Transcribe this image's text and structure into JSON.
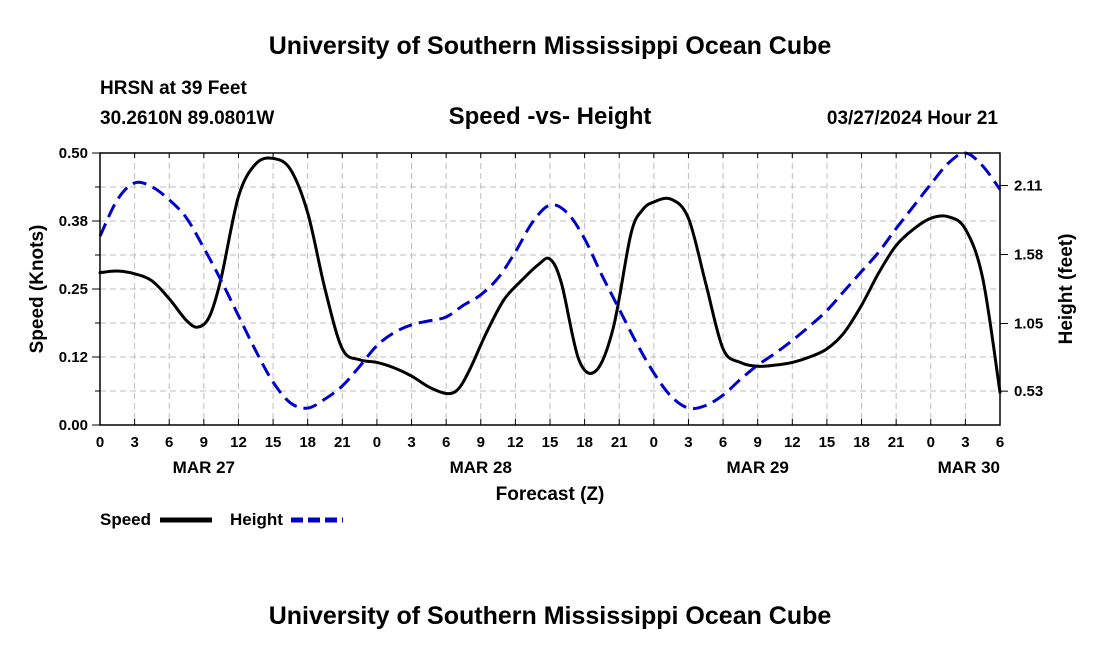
{
  "chart_data": {
    "type": "line",
    "title": "University of Southern Mississippi Ocean Cube",
    "footer_title": "University of Southern Mississippi Ocean Cube",
    "station": "HRSN at 39 Feet",
    "coords": "30.2610N  89.0801W",
    "subtitle": "Speed -vs- Height",
    "timestamp": "03/27/2024 Hour 21",
    "xlabel": "Forecast (Z)",
    "ylabel_left": "Speed (Knots)",
    "ylabel_right": "Height (feet)",
    "xlim": [
      0,
      78
    ],
    "ylim_left": [
      0,
      0.5
    ],
    "ylim_right": [
      0.27,
      2.36
    ],
    "grid": true,
    "x_tick_labels": [
      "0",
      "3",
      "6",
      "9",
      "12",
      "15",
      "18",
      "21",
      "0",
      "3",
      "6",
      "9",
      "12",
      "15",
      "18",
      "21",
      "0",
      "3",
      "6",
      "9",
      "12",
      "15",
      "18",
      "21",
      "0",
      "3",
      "6"
    ],
    "y_left_ticks": [
      {
        "value": 0.0,
        "label": "0.00"
      },
      {
        "value": 0.125,
        "label": "0.12"
      },
      {
        "value": 0.25,
        "label": "0.25"
      },
      {
        "value": 0.375,
        "label": "0.38"
      },
      {
        "value": 0.5,
        "label": "0.50"
      }
    ],
    "y_right_ticks": [
      {
        "value": 0.53,
        "label": "0.53"
      },
      {
        "value": 1.05,
        "label": "1.05"
      },
      {
        "value": 1.58,
        "label": "1.58"
      },
      {
        "value": 2.11,
        "label": "2.11"
      }
    ],
    "date_labels": [
      {
        "hour": 9,
        "label": "MAR 27"
      },
      {
        "hour": 33,
        "label": "MAR 28"
      },
      {
        "hour": 57,
        "label": "MAR 29"
      },
      {
        "hour": 78,
        "label": "MAR 30"
      }
    ],
    "legend": [
      {
        "name": "Speed",
        "color": "#000000",
        "dash": "solid"
      },
      {
        "name": "Height",
        "color": "#0000cc",
        "dash": "dashed"
      }
    ],
    "series": [
      {
        "name": "Speed",
        "axis": "left",
        "color": "#000000",
        "x": [
          0,
          1.5,
          3,
          4.5,
          6,
          7.5,
          8.5,
          9.5,
          10.5,
          12,
          13.5,
          15,
          16.5,
          18,
          19.5,
          21,
          22.5,
          24,
          25.5,
          27,
          28.5,
          30,
          31,
          32,
          33.5,
          35,
          36.5,
          38,
          39,
          40,
          41.5,
          43,
          44.5,
          46,
          47,
          48,
          49.5,
          51,
          52.5,
          54,
          55.5,
          57,
          58.5,
          60,
          61.5,
          63,
          64.5,
          66,
          67.5,
          69,
          70.5,
          72,
          73.5,
          75,
          76.5,
          78
        ],
        "values": [
          0.28,
          0.283,
          0.278,
          0.265,
          0.232,
          0.192,
          0.18,
          0.2,
          0.27,
          0.42,
          0.48,
          0.49,
          0.47,
          0.39,
          0.25,
          0.14,
          0.12,
          0.115,
          0.105,
          0.09,
          0.07,
          0.058,
          0.065,
          0.1,
          0.17,
          0.23,
          0.265,
          0.295,
          0.305,
          0.26,
          0.12,
          0.1,
          0.18,
          0.35,
          0.395,
          0.41,
          0.415,
          0.38,
          0.26,
          0.14,
          0.115,
          0.108,
          0.11,
          0.115,
          0.125,
          0.14,
          0.17,
          0.22,
          0.28,
          0.33,
          0.36,
          0.38,
          0.383,
          0.36,
          0.27,
          0.06
        ]
      },
      {
        "name": "Height",
        "axis": "right",
        "color": "#0000cc",
        "x": [
          0,
          1.5,
          3,
          4.5,
          6,
          7.5,
          9,
          10.5,
          12,
          13.5,
          15,
          16.5,
          18,
          19.5,
          21,
          22.5,
          24,
          25.5,
          27,
          28.5,
          30,
          31.5,
          33,
          34.5,
          36,
          37.5,
          39,
          40.5,
          42,
          43.5,
          45,
          46.5,
          48,
          49.5,
          51,
          52.5,
          54,
          55.5,
          57,
          58.5,
          60,
          61.5,
          63,
          64.5,
          66,
          67.5,
          69,
          70.5,
          72,
          73.5,
          75,
          76.5,
          78
        ],
        "values": [
          1.72,
          2.0,
          2.13,
          2.1,
          2.0,
          1.86,
          1.63,
          1.38,
          1.11,
          0.84,
          0.6,
          0.44,
          0.4,
          0.47,
          0.57,
          0.72,
          0.88,
          0.98,
          1.04,
          1.07,
          1.1,
          1.19,
          1.27,
          1.4,
          1.6,
          1.83,
          1.96,
          1.9,
          1.7,
          1.42,
          1.16,
          0.9,
          0.67,
          0.49,
          0.4,
          0.42,
          0.5,
          0.62,
          0.73,
          0.82,
          0.92,
          1.03,
          1.15,
          1.3,
          1.45,
          1.6,
          1.78,
          1.95,
          2.12,
          2.28,
          2.36,
          2.26,
          2.08
        ]
      }
    ]
  }
}
